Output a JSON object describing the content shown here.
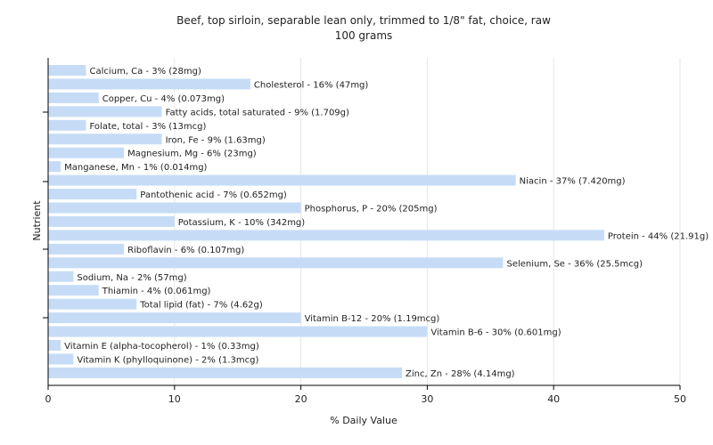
{
  "chart_data": {
    "type": "bar",
    "orientation": "horizontal",
    "title": "Beef, top sirloin, separable lean only, trimmed to 1/8\" fat, choice, raw",
    "subtitle": "100 grams",
    "xlabel": "% Daily Value",
    "ylabel": "Nutrient",
    "xlim": [
      0,
      50
    ],
    "xticks": [
      "0",
      "10",
      "20",
      "30",
      "40",
      "50"
    ],
    "grid": true,
    "bar_color": "#c6dcf6",
    "categories": [
      "Calcium, Ca",
      "Cholesterol",
      "Copper, Cu",
      "Fatty acids, total saturated",
      "Folate, total",
      "Iron, Fe",
      "Magnesium, Mg",
      "Manganese, Mn",
      "Niacin",
      "Pantothenic acid",
      "Phosphorus, P",
      "Potassium, K",
      "Protein",
      "Riboflavin",
      "Selenium, Se",
      "Sodium, Na",
      "Thiamin",
      "Total lipid (fat)",
      "Vitamin B-12",
      "Vitamin B-6",
      "Vitamin E (alpha-tocopherol)",
      "Vitamin K (phylloquinone)",
      "Zinc, Zn"
    ],
    "values": [
      3,
      16,
      4,
      9,
      3,
      9,
      6,
      1,
      37,
      7,
      20,
      10,
      44,
      6,
      36,
      2,
      4,
      7,
      20,
      30,
      1,
      2,
      28
    ],
    "labels": [
      "Calcium, Ca - 3% (28mg)",
      "Cholesterol - 16% (47mg)",
      "Copper, Cu - 4% (0.073mg)",
      "Fatty acids, total saturated - 9% (1.709g)",
      "Folate, total - 3% (13mcg)",
      "Iron, Fe - 9% (1.63mg)",
      "Magnesium, Mg - 6% (23mg)",
      "Manganese, Mn - 1% (0.014mg)",
      "Niacin - 37% (7.420mg)",
      "Pantothenic acid - 7% (0.652mg)",
      "Phosphorus, P - 20% (205mg)",
      "Potassium, K - 10% (342mg)",
      "Protein - 44% (21.91g)",
      "Riboflavin - 6% (0.107mg)",
      "Selenium, Se - 36% (25.5mcg)",
      "Sodium, Na - 2% (57mg)",
      "Thiamin - 4% (0.061mg)",
      "Total lipid (fat) - 7% (4.62g)",
      "Vitamin B-12 - 20% (1.19mcg)",
      "Vitamin B-6 - 30% (0.601mg)",
      "Vitamin E (alpha-tocopherol) - 1% (0.33mg)",
      "Vitamin K (phylloquinone) - 2% (1.3mcg)",
      "Zinc, Zn - 28% (4.14mg)"
    ]
  }
}
